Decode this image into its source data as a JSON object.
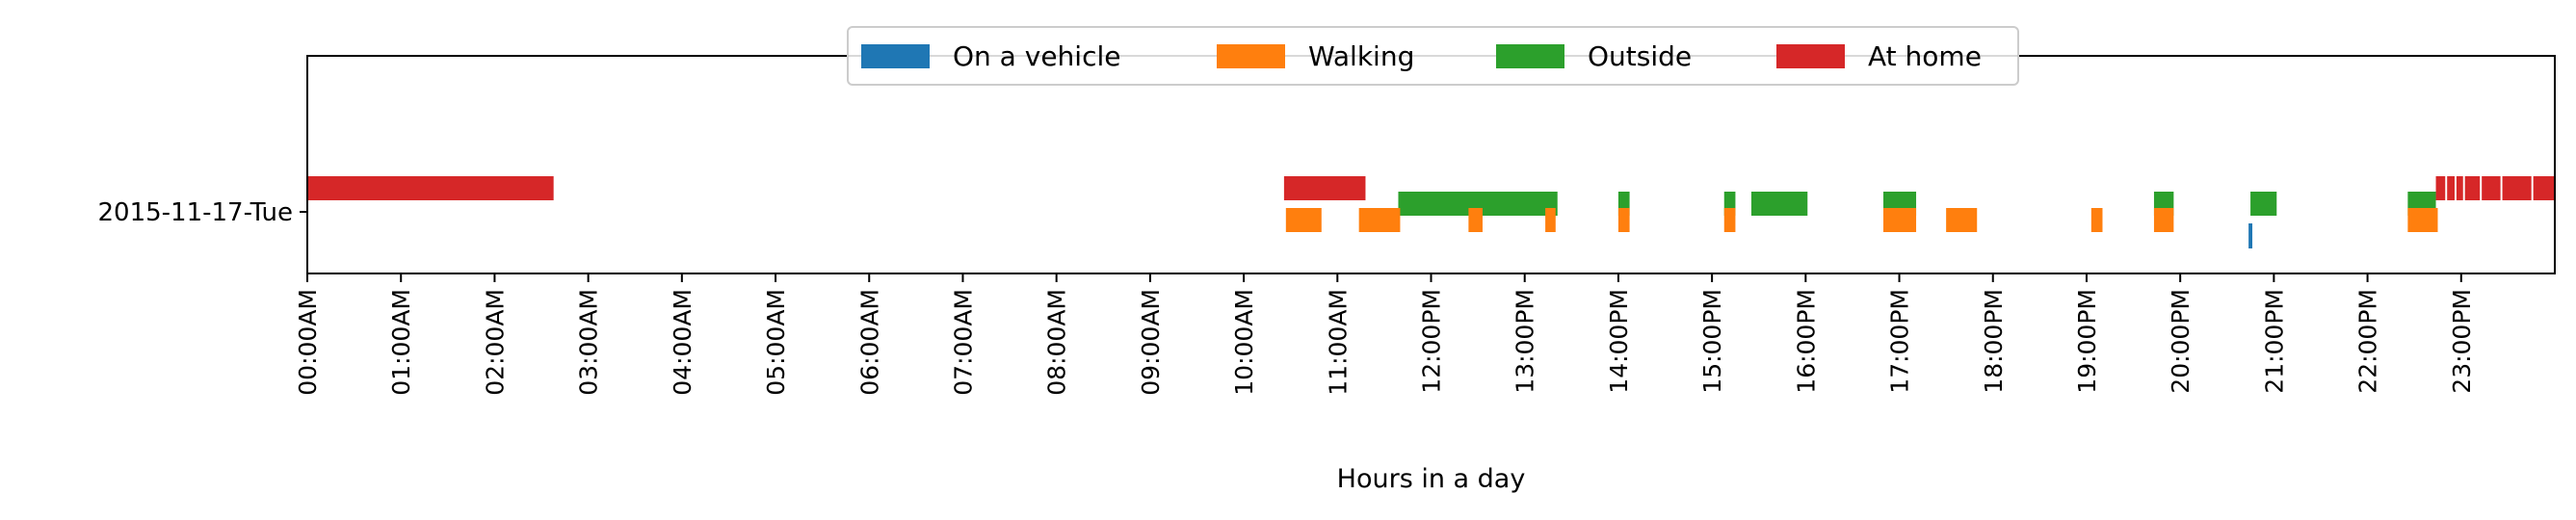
{
  "chart_data": {
    "type": "timeline",
    "xlabel": "Hours in a day",
    "xlim": [
      0,
      24
    ],
    "xticks": [
      {
        "value": 0,
        "label": "00:00AM"
      },
      {
        "value": 1,
        "label": "01:00AM"
      },
      {
        "value": 2,
        "label": "02:00AM"
      },
      {
        "value": 3,
        "label": "03:00AM"
      },
      {
        "value": 4,
        "label": "04:00AM"
      },
      {
        "value": 5,
        "label": "05:00AM"
      },
      {
        "value": 6,
        "label": "06:00AM"
      },
      {
        "value": 7,
        "label": "07:00AM"
      },
      {
        "value": 8,
        "label": "08:00AM"
      },
      {
        "value": 9,
        "label": "09:00AM"
      },
      {
        "value": 10,
        "label": "10:00AM"
      },
      {
        "value": 11,
        "label": "11:00AM"
      },
      {
        "value": 12,
        "label": "12:00PM"
      },
      {
        "value": 13,
        "label": "13:00PM"
      },
      {
        "value": 14,
        "label": "14:00PM"
      },
      {
        "value": 15,
        "label": "15:00PM"
      },
      {
        "value": 16,
        "label": "16:00PM"
      },
      {
        "value": 17,
        "label": "17:00PM"
      },
      {
        "value": 18,
        "label": "18:00PM"
      },
      {
        "value": 19,
        "label": "19:00PM"
      },
      {
        "value": 20,
        "label": "20:00PM"
      },
      {
        "value": 21,
        "label": "21:00PM"
      },
      {
        "value": 22,
        "label": "22:00PM"
      },
      {
        "value": 23,
        "label": "23:00PM"
      }
    ],
    "rows": [
      "2015-11-17-Tue"
    ],
    "legend_position": "top-center",
    "grid": false,
    "series": [
      {
        "name": "On a vehicle",
        "color": "#1f77b4",
        "intervals": [
          [
            20.73,
            20.77
          ]
        ]
      },
      {
        "name": "Walking",
        "color": "#ff7f0e",
        "intervals": [
          [
            10.45,
            10.83
          ],
          [
            11.23,
            11.67
          ],
          [
            12.4,
            12.55
          ],
          [
            13.22,
            13.33
          ],
          [
            14.0,
            14.12
          ],
          [
            15.13,
            15.25
          ],
          [
            16.83,
            17.18
          ],
          [
            17.5,
            17.83
          ],
          [
            19.05,
            19.17
          ],
          [
            19.72,
            19.93
          ],
          [
            22.43,
            22.75
          ]
        ]
      },
      {
        "name": "Outside",
        "color": "#2ca02c",
        "intervals": [
          [
            11.65,
            13.35
          ],
          [
            14.0,
            14.12
          ],
          [
            15.13,
            15.25
          ],
          [
            15.42,
            16.02
          ],
          [
            16.83,
            17.18
          ],
          [
            19.72,
            19.93
          ],
          [
            20.75,
            21.03
          ],
          [
            22.43,
            22.73
          ]
        ]
      },
      {
        "name": "At home",
        "color": "#d62728",
        "intervals": [
          [
            0.0,
            2.63
          ],
          [
            10.43,
            11.3
          ],
          [
            22.73,
            22.83
          ],
          [
            22.85,
            22.93
          ],
          [
            22.95,
            23.02
          ],
          [
            23.04,
            23.2
          ],
          [
            23.22,
            23.42
          ],
          [
            23.44,
            23.75
          ],
          [
            23.77,
            24.0
          ]
        ]
      }
    ]
  }
}
